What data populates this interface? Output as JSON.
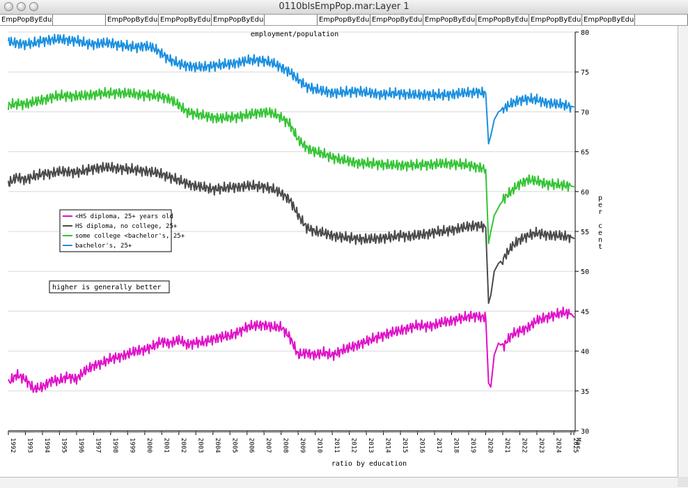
{
  "window": {
    "title": "0110blsEmpPop.mar:Layer 1"
  },
  "tabs": [
    "EmpPopByEdu",
    "",
    "EmpPopByEdu",
    "EmpPopByEdu",
    "EmpPopByEdu",
    "",
    "EmpPopByEdu",
    "EmpPopByEdu",
    "EmpPopByEdu",
    "EmpPopByEdu",
    "EmpPopByEdu",
    "EmpPopByEdu",
    ""
  ],
  "note": "higher is generally better",
  "chart_data": {
    "type": "line",
    "title": "employment/population",
    "xlabel": "ratio by education",
    "ylabel": "per cent",
    "ylim": [
      30,
      80
    ],
    "yticks": [
      30,
      35,
      40,
      45,
      50,
      55,
      60,
      65,
      70,
      75,
      80
    ],
    "xlim": [
      1992,
      2025.25
    ],
    "xticks": [
      "1992",
      "1993",
      "1994",
      "1995",
      "1996",
      "1997",
      "1998",
      "1999",
      "2000",
      "2001",
      "2002",
      "2003",
      "2004",
      "2005",
      "2006",
      "2007",
      "2008",
      "2009",
      "2010",
      "2011",
      "2012",
      "2013",
      "2014",
      "2015",
      "2016",
      "2017",
      "2018",
      "2019",
      "2020",
      "2021",
      "2022",
      "2023",
      "2024",
      "2025",
      "Mar"
    ],
    "grid": "horizontal",
    "legend_position": "left-middle",
    "series": [
      {
        "name": "<HS diploma, 25+ years old",
        "color": "#e010c8",
        "x": [
          1992,
          1992.5,
          1993,
          1993.5,
          1994,
          1994.5,
          1995,
          1995.5,
          1996,
          1996.5,
          1997,
          1997.5,
          1998,
          1998.5,
          1999,
          1999.5,
          2000,
          2000.5,
          2001,
          2001.5,
          2002,
          2002.5,
          2003,
          2003.5,
          2004,
          2004.5,
          2005,
          2005.5,
          2006,
          2006.5,
          2007,
          2007.5,
          2008,
          2008.5,
          2009,
          2009.5,
          2010,
          2010.5,
          2011,
          2011.5,
          2012,
          2012.5,
          2013,
          2013.5,
          2014,
          2014.5,
          2015,
          2015.5,
          2016,
          2016.5,
          2017,
          2017.5,
          2018,
          2018.5,
          2019,
          2019.5,
          2020,
          2020.17,
          2020.3,
          2020.5,
          2020.75,
          2021,
          2021.5,
          2022,
          2022.5,
          2023,
          2023.5,
          2024,
          2024.5,
          2025,
          2025.2
        ],
        "y": [
          36,
          37,
          36.5,
          35.2,
          35.5,
          36.3,
          36.3,
          36.8,
          36.5,
          37.5,
          38.2,
          38.5,
          39,
          39.3,
          39.6,
          40,
          40.2,
          40.6,
          41.2,
          41,
          41.4,
          40.8,
          41.1,
          41.1,
          41.5,
          41.8,
          41.9,
          42.4,
          43,
          43.2,
          43.3,
          43,
          43,
          41.8,
          39.5,
          39.8,
          39.5,
          39.8,
          39.5,
          40,
          40.4,
          40.8,
          41.2,
          41.6,
          42,
          42.3,
          42.6,
          42.9,
          43.2,
          43.1,
          43.3,
          43.6,
          43.8,
          44.1,
          44.3,
          44.4,
          44.2,
          36,
          35.5,
          39.5,
          41,
          40.5,
          42,
          42.5,
          43,
          43.8,
          44.2,
          44.5,
          44.8,
          44.7,
          44.2
        ]
      },
      {
        "name": "HS diploma, no college, 25+",
        "color": "#4a4a4a",
        "x": [
          1992,
          1992.5,
          1993,
          1993.5,
          1994,
          1994.5,
          1995,
          1995.5,
          1996,
          1996.5,
          1997,
          1997.5,
          1998,
          1998.5,
          1999,
          1999.5,
          2000,
          2000.5,
          2001,
          2001.5,
          2002,
          2002.5,
          2003,
          2003.5,
          2004,
          2004.5,
          2005,
          2005.5,
          2006,
          2006.5,
          2007,
          2007.5,
          2008,
          2008.5,
          2009,
          2009.5,
          2010,
          2010.5,
          2011,
          2011.5,
          2012,
          2012.5,
          2013,
          2013.5,
          2014,
          2014.5,
          2015,
          2015.5,
          2016,
          2016.5,
          2017,
          2017.5,
          2018,
          2018.5,
          2019,
          2019.5,
          2020,
          2020.17,
          2020.3,
          2020.5,
          2020.75,
          2021,
          2021.5,
          2022,
          2022.5,
          2023,
          2023.5,
          2024,
          2024.5,
          2025,
          2025.2
        ],
        "y": [
          61,
          61.8,
          61.5,
          61.9,
          62.2,
          62.3,
          62.5,
          62.5,
          62.4,
          62.6,
          62.9,
          63,
          63,
          62.9,
          62.8,
          62.7,
          62.6,
          62.4,
          62.2,
          61.8,
          61.4,
          61,
          60.7,
          60.5,
          60.3,
          60.4,
          60.5,
          60.6,
          60.7,
          60.7,
          60.6,
          60.3,
          59.8,
          59,
          57,
          55.5,
          55,
          54.8,
          54.5,
          54.3,
          54.2,
          54.1,
          54,
          54.1,
          54.2,
          54.3,
          54.5,
          54.4,
          54.5,
          54.7,
          54.9,
          55,
          55.2,
          55.4,
          55.6,
          55.8,
          55.5,
          46,
          47,
          50,
          51,
          51.5,
          53,
          54,
          54.5,
          54.8,
          54.6,
          54.5,
          54.4,
          54.3,
          54.1
        ]
      },
      {
        "name": "some college <bachelor's, 25+",
        "color": "#33c433",
        "x": [
          1992,
          1992.5,
          1993,
          1993.5,
          1994,
          1994.5,
          1995,
          1995.5,
          1996,
          1996.5,
          1997,
          1997.5,
          1998,
          1998.5,
          1999,
          1999.5,
          2000,
          2000.5,
          2001,
          2001.5,
          2002,
          2002.5,
          2003,
          2003.5,
          2004,
          2004.5,
          2005,
          2005.5,
          2006,
          2006.5,
          2007,
          2007.5,
          2008,
          2008.5,
          2009,
          2009.5,
          2010,
          2010.5,
          2011,
          2011.5,
          2012,
          2012.5,
          2013,
          2013.5,
          2014,
          2014.5,
          2015,
          2015.5,
          2016,
          2016.5,
          2017,
          2017.5,
          2018,
          2018.5,
          2019,
          2019.5,
          2020,
          2020.17,
          2020.3,
          2020.5,
          2020.75,
          2021,
          2021.5,
          2022,
          2022.5,
          2023,
          2023.5,
          2024,
          2024.5,
          2025,
          2025.2
        ],
        "y": [
          70.8,
          71,
          71,
          71.2,
          71.5,
          71.8,
          72,
          72,
          72,
          72,
          72.2,
          72.3,
          72.3,
          72.4,
          72.3,
          72.2,
          72.1,
          72,
          71.9,
          71.6,
          70.8,
          70,
          69.7,
          69.5,
          69.3,
          69.2,
          69.3,
          69.4,
          69.6,
          69.8,
          70,
          69.8,
          69.3,
          68.5,
          66.5,
          65.5,
          65,
          64.7,
          64.3,
          64,
          63.8,
          63.6,
          63.5,
          63.5,
          63.4,
          63.3,
          63.3,
          63.3,
          63.3,
          63.4,
          63.4,
          63.5,
          63.5,
          63.4,
          63.3,
          63.1,
          62.8,
          53.5,
          55,
          57,
          58,
          59,
          60,
          61,
          61.5,
          61.3,
          61,
          60.9,
          60.8,
          60.7,
          60.6
        ]
      },
      {
        "name": "bachelor's, 25+",
        "color": "#1a8fe0",
        "x": [
          1992,
          1992.5,
          1993,
          1993.5,
          1994,
          1994.5,
          1995,
          1995.5,
          1996,
          1996.5,
          1997,
          1997.5,
          1998,
          1998.5,
          1999,
          1999.5,
          2000,
          2000.5,
          2001,
          2001.5,
          2002,
          2002.5,
          2003,
          2003.5,
          2004,
          2004.5,
          2005,
          2005.5,
          2006,
          2006.5,
          2007,
          2007.5,
          2008,
          2008.5,
          2009,
          2009.5,
          2010,
          2010.5,
          2011,
          2011.5,
          2012,
          2012.5,
          2013,
          2013.5,
          2014,
          2014.5,
          2015,
          2015.5,
          2016,
          2016.5,
          2017,
          2017.5,
          2018,
          2018.5,
          2019,
          2019.5,
          2020,
          2020.17,
          2020.3,
          2020.5,
          2020.75,
          2021,
          2021.5,
          2022,
          2022.5,
          2023,
          2023.5,
          2024,
          2024.5,
          2025,
          2025.2
        ],
        "y": [
          78.8,
          78.6,
          78.5,
          78.6,
          78.9,
          79,
          79.1,
          79,
          78.9,
          78.6,
          78.5,
          78.6,
          78.6,
          78.4,
          78.2,
          78.1,
          78.3,
          78,
          77.3,
          76.5,
          76,
          75.8,
          75.6,
          75.6,
          75.8,
          75.9,
          76,
          76.2,
          76.4,
          76.5,
          76.4,
          76.1,
          75.6,
          75,
          74,
          73.2,
          72.8,
          72.6,
          72.4,
          72.4,
          72.5,
          72.6,
          72.4,
          72.3,
          72.2,
          72.3,
          72.3,
          72.2,
          72.1,
          72.2,
          72.1,
          72.1,
          72.2,
          72.3,
          72.4,
          72.5,
          72.3,
          66,
          67,
          69,
          70,
          70.3,
          71,
          71.5,
          71.6,
          71.5,
          71.2,
          71,
          70.9,
          70.7,
          70.6
        ]
      }
    ]
  }
}
